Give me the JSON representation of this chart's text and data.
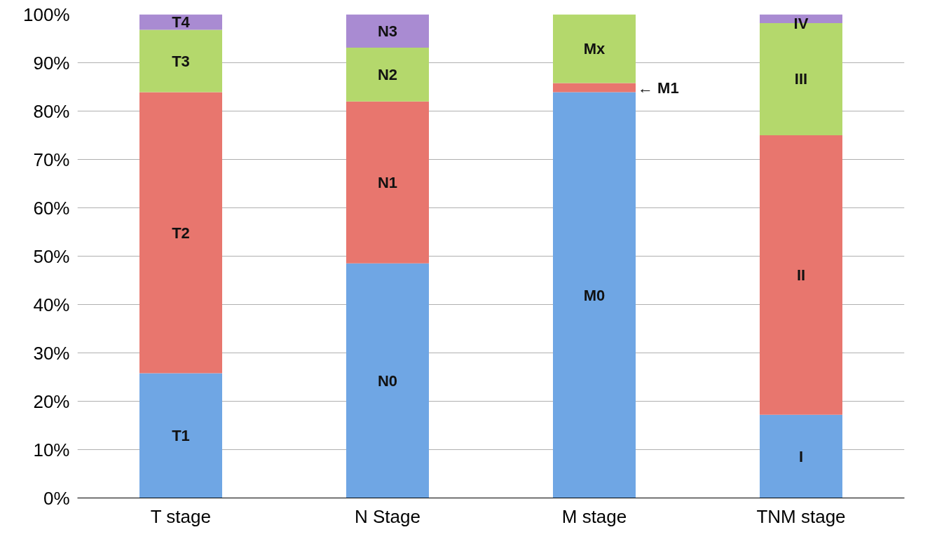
{
  "chart_data": {
    "type": "bar",
    "stacked": true,
    "categories": [
      "T stage",
      "N Stage",
      "M stage",
      "TNM stage"
    ],
    "series": [
      {
        "color": "#6fa6e4",
        "values": [
          25.8,
          48.5,
          83.9,
          17.2
        ],
        "value_labels": [
          "T1",
          "N0",
          "M0",
          "I"
        ]
      },
      {
        "color": "#e8766e",
        "values": [
          58.1,
          33.5,
          1.9,
          57.8
        ],
        "value_labels": [
          "T2",
          "N1",
          null,
          "II"
        ]
      },
      {
        "color": "#b4d86c",
        "values": [
          12.9,
          11.1,
          14.2,
          23.2
        ],
        "value_labels": [
          "T3",
          "N2",
          "Mx",
          "III"
        ]
      },
      {
        "color": "#a98bd2",
        "values": [
          3.2,
          6.9,
          null,
          1.8
        ],
        "value_labels": [
          "T4",
          "N3",
          null,
          "IV"
        ]
      }
    ],
    "annotations": [
      "← M1"
    ],
    "ylim": [
      0,
      100
    ],
    "yticks": [
      {
        "value": 0,
        "label": "0%"
      },
      {
        "value": 10,
        "label": "10%"
      },
      {
        "value": 20,
        "label": "20%"
      },
      {
        "value": 30,
        "label": "30%"
      },
      {
        "value": 40,
        "label": "40%"
      },
      {
        "value": 50,
        "label": "50%"
      },
      {
        "value": 60,
        "label": "60%"
      },
      {
        "value": 70,
        "label": "70%"
      },
      {
        "value": 80,
        "label": "80%"
      },
      {
        "value": 90,
        "label": "90%"
      },
      {
        "value": 100,
        "label": "100%"
      }
    ],
    "grid": "y"
  }
}
